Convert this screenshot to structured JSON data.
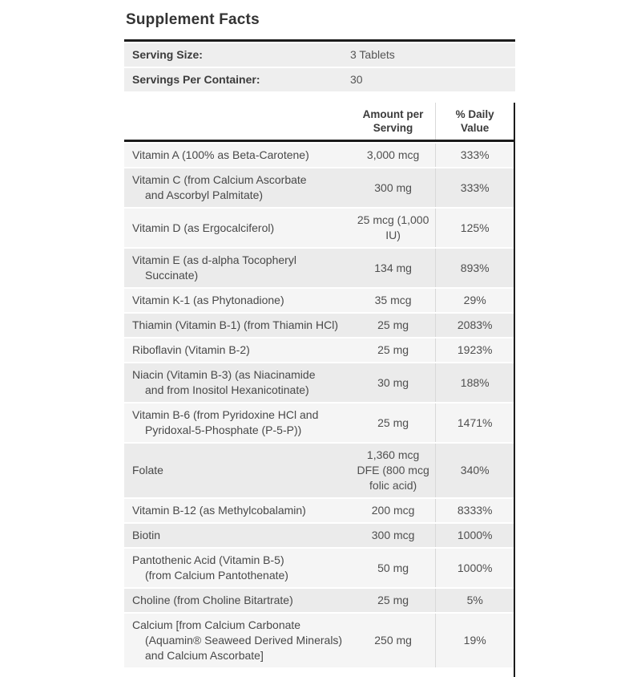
{
  "title": "Supplement Facts",
  "serving_info": {
    "rows": [
      {
        "label": "Serving Size:",
        "value": "3 Tablets"
      },
      {
        "label": "Servings Per Container:",
        "value": "30"
      }
    ]
  },
  "table": {
    "columns": {
      "amount": "Amount per Serving",
      "daily_value": "% Daily Value"
    },
    "rows": [
      {
        "name": "Vitamin A (100% as Beta-Carotene)",
        "amount": "3,000 mcg",
        "dv": "333%"
      },
      {
        "name": "Vitamin C (from Calcium Ascorbate\nand Ascorbyl Palmitate)",
        "amount": "300 mg",
        "dv": "333%"
      },
      {
        "name": "Vitamin D (as Ergocalciferol)",
        "amount": "25 mcg (1,000\nIU)",
        "dv": "125%"
      },
      {
        "name": "Vitamin E (as d-alpha Tocopheryl Succinate)",
        "amount": "134 mg",
        "dv": "893%"
      },
      {
        "name": "Vitamin K-1 (as Phytonadione)",
        "amount": "35 mcg",
        "dv": "29%"
      },
      {
        "name": "Thiamin (Vitamin B-1) (from Thiamin HCl)",
        "amount": "25 mg",
        "dv": "2083%"
      },
      {
        "name": "Riboflavin (Vitamin B-2)",
        "amount": "25 mg",
        "dv": "1923%"
      },
      {
        "name": "Niacin (Vitamin B-3) (as Niacinamide\nand from Inositol Hexanicotinate)",
        "amount": "30 mg",
        "dv": "188%"
      },
      {
        "name": "Vitamin B-6 (from Pyridoxine HCl and\nPyridoxal-5-Phosphate (P-5-P))",
        "amount": "25 mg",
        "dv": "1471%"
      },
      {
        "name": "Folate",
        "amount": "1,360 mcg\nDFE (800 mcg\nfolic acid)",
        "dv": "340%"
      },
      {
        "name": "Vitamin B-12 (as Methylcobalamin)",
        "amount": "200 mcg",
        "dv": "8333%"
      },
      {
        "name": "Biotin",
        "amount": "300 mcg",
        "dv": "1000%"
      },
      {
        "name": "Pantothenic Acid (Vitamin B-5)\n(from Calcium Pantothenate)",
        "amount": "50 mg",
        "dv": "1000%"
      },
      {
        "name": "Choline (from Choline Bitartrate)",
        "amount": "25 mg",
        "dv": "5%"
      },
      {
        "name": "Calcium [from Calcium Carbonate\n(Aquamin® Seaweed Derived Minerals)\nand Calcium Ascorbate]",
        "amount": "250 mg",
        "dv": "19%"
      }
    ]
  },
  "colors": {
    "rule_dark": "#1c1c1c",
    "row_light": "#f5f5f5",
    "row_dark": "#ebebeb",
    "serving_row_bg": "#eeeeee",
    "separator_light": "#d8d8d8",
    "text_dark": "#333333"
  }
}
